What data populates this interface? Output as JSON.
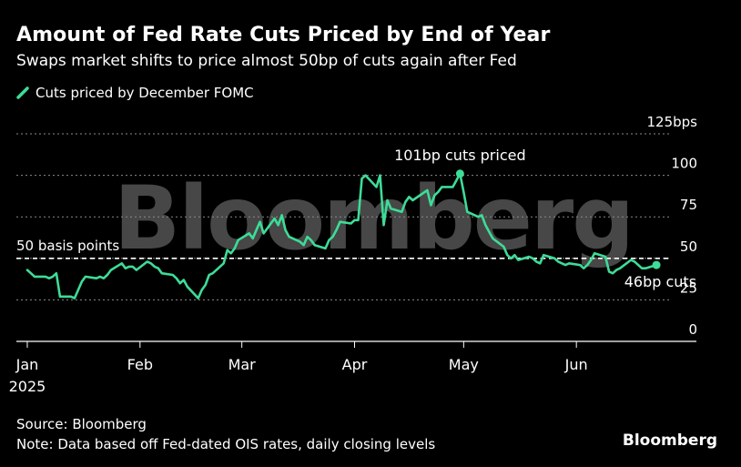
{
  "title": "Amount of Fed Rate Cuts Priced by End of Year",
  "subtitle": "Swaps market shifts to price almost 50bp of cuts again after Fed",
  "legend": {
    "label": "Cuts priced by December FOMC"
  },
  "footer": {
    "source": "Source: Bloomberg",
    "note": "Note: Data based off Fed-dated OIS rates, daily closing levels"
  },
  "logo": "Bloomberg",
  "watermark": "Bloomberg",
  "colors": {
    "series": "#3ddc97",
    "grid": "#8a8a8a",
    "reference": "#ffffff",
    "background": "#000000"
  },
  "chart_data": {
    "type": "line",
    "ylim": [
      0,
      125
    ],
    "y_ticks": [
      {
        "value": 0,
        "label": "0"
      },
      {
        "value": 25,
        "label": "25"
      },
      {
        "value": 50,
        "label": "50"
      },
      {
        "value": 75,
        "label": "75"
      },
      {
        "value": 100,
        "label": "100"
      },
      {
        "value": 125,
        "label": "125bps"
      }
    ],
    "x_ticks": [
      {
        "date": "2025-01-01",
        "label": "Jan",
        "sublabel": "2025"
      },
      {
        "date": "2025-02-01",
        "label": "Feb",
        "sublabel": ""
      },
      {
        "date": "2025-03-01",
        "label": "Mar",
        "sublabel": ""
      },
      {
        "date": "2025-04-01",
        "label": "Apr",
        "sublabel": ""
      },
      {
        "date": "2025-05-01",
        "label": "May",
        "sublabel": ""
      },
      {
        "date": "2025-06-01",
        "label": "Jun",
        "sublabel": ""
      }
    ],
    "xlim": [
      "2024-12-29",
      "2025-07-04"
    ],
    "grid": true,
    "reference_line": {
      "value": 50,
      "label": "50 basis points"
    },
    "series": [
      {
        "name": "Cuts priced by December FOMC",
        "points": [
          [
            "2025-01-01",
            43
          ],
          [
            "2025-01-02",
            41
          ],
          [
            "2025-01-03",
            39
          ],
          [
            "2025-01-06",
            39
          ],
          [
            "2025-01-07",
            38
          ],
          [
            "2025-01-08",
            39
          ],
          [
            "2025-01-09",
            41
          ],
          [
            "2025-01-10",
            27
          ],
          [
            "2025-01-13",
            27
          ],
          [
            "2025-01-14",
            26
          ],
          [
            "2025-01-15",
            31
          ],
          [
            "2025-01-16",
            36
          ],
          [
            "2025-01-17",
            39
          ],
          [
            "2025-01-20",
            38
          ],
          [
            "2025-01-21",
            39
          ],
          [
            "2025-01-22",
            38
          ],
          [
            "2025-01-23",
            40
          ],
          [
            "2025-01-24",
            43
          ],
          [
            "2025-01-27",
            47
          ],
          [
            "2025-01-28",
            44
          ],
          [
            "2025-01-29",
            45
          ],
          [
            "2025-01-30",
            45
          ],
          [
            "2025-01-31",
            43
          ],
          [
            "2025-02-03",
            48
          ],
          [
            "2025-02-04",
            47
          ],
          [
            "2025-02-05",
            45
          ],
          [
            "2025-02-06",
            44
          ],
          [
            "2025-02-07",
            41
          ],
          [
            "2025-02-10",
            40
          ],
          [
            "2025-02-11",
            38
          ],
          [
            "2025-02-12",
            35
          ],
          [
            "2025-02-13",
            37
          ],
          [
            "2025-02-14",
            33
          ],
          [
            "2025-02-17",
            26
          ],
          [
            "2025-02-18",
            31
          ],
          [
            "2025-02-19",
            34
          ],
          [
            "2025-02-20",
            40
          ],
          [
            "2025-02-21",
            41
          ],
          [
            "2025-02-24",
            47
          ],
          [
            "2025-02-25",
            55
          ],
          [
            "2025-02-26",
            53
          ],
          [
            "2025-02-27",
            56
          ],
          [
            "2025-02-28",
            61
          ],
          [
            "2025-03-03",
            65
          ],
          [
            "2025-03-04",
            62
          ],
          [
            "2025-03-05",
            67
          ],
          [
            "2025-03-06",
            72
          ],
          [
            "2025-03-07",
            65
          ],
          [
            "2025-03-10",
            74
          ],
          [
            "2025-03-11",
            70
          ],
          [
            "2025-03-12",
            76
          ],
          [
            "2025-03-13",
            67
          ],
          [
            "2025-03-14",
            63
          ],
          [
            "2025-03-17",
            60
          ],
          [
            "2025-03-18",
            58
          ],
          [
            "2025-03-19",
            63
          ],
          [
            "2025-03-20",
            61
          ],
          [
            "2025-03-21",
            58
          ],
          [
            "2025-03-24",
            56
          ],
          [
            "2025-03-25",
            61
          ],
          [
            "2025-03-26",
            63
          ],
          [
            "2025-03-27",
            67
          ],
          [
            "2025-03-28",
            72
          ],
          [
            "2025-03-31",
            71
          ],
          [
            "2025-04-01",
            73
          ],
          [
            "2025-04-02",
            73
          ],
          [
            "2025-04-03",
            98
          ],
          [
            "2025-04-04",
            100
          ],
          [
            "2025-04-07",
            93
          ],
          [
            "2025-04-08",
            100
          ],
          [
            "2025-04-09",
            70
          ],
          [
            "2025-04-10",
            85
          ],
          [
            "2025-04-11",
            80
          ],
          [
            "2025-04-14",
            78
          ],
          [
            "2025-04-15",
            84
          ],
          [
            "2025-04-16",
            87
          ],
          [
            "2025-04-17",
            85
          ],
          [
            "2025-04-21",
            91
          ],
          [
            "2025-04-22",
            82
          ],
          [
            "2025-04-23",
            88
          ],
          [
            "2025-04-24",
            90
          ],
          [
            "2025-04-25",
            93
          ],
          [
            "2025-04-28",
            93
          ],
          [
            "2025-04-29",
            97
          ],
          [
            "2025-04-30",
            101
          ],
          [
            "2025-05-01",
            90
          ],
          [
            "2025-05-02",
            78
          ],
          [
            "2025-05-05",
            75
          ],
          [
            "2025-05-06",
            76
          ],
          [
            "2025-05-07",
            70
          ],
          [
            "2025-05-08",
            66
          ],
          [
            "2025-05-09",
            62
          ],
          [
            "2025-05-12",
            57
          ],
          [
            "2025-05-13",
            52
          ],
          [
            "2025-05-14",
            50
          ],
          [
            "2025-05-15",
            52
          ],
          [
            "2025-05-16",
            49
          ],
          [
            "2025-05-19",
            51
          ],
          [
            "2025-05-20",
            50
          ],
          [
            "2025-05-21",
            48
          ],
          [
            "2025-05-22",
            47
          ],
          [
            "2025-05-23",
            52
          ],
          [
            "2025-05-26",
            50
          ],
          [
            "2025-05-27",
            48
          ],
          [
            "2025-05-28",
            47
          ],
          [
            "2025-05-29",
            46
          ],
          [
            "2025-05-30",
            47
          ],
          [
            "2025-06-02",
            46
          ],
          [
            "2025-06-03",
            44
          ],
          [
            "2025-06-04",
            46
          ],
          [
            "2025-06-05",
            49
          ],
          [
            "2025-06-06",
            53
          ],
          [
            "2025-06-09",
            51
          ],
          [
            "2025-06-10",
            42
          ],
          [
            "2025-06-11",
            41
          ],
          [
            "2025-06-12",
            43
          ],
          [
            "2025-06-13",
            44
          ],
          [
            "2025-06-16",
            49
          ],
          [
            "2025-06-17",
            48
          ],
          [
            "2025-06-18",
            46
          ],
          [
            "2025-06-19",
            44
          ],
          [
            "2025-06-20",
            44
          ],
          [
            "2025-06-23",
            46
          ]
        ]
      }
    ],
    "annotations": [
      {
        "date": "2025-04-30",
        "value": 101,
        "label": "101bp cuts priced",
        "position": "above"
      },
      {
        "date": "2025-06-23",
        "value": 46,
        "label": "46bp cuts",
        "position": "below-left"
      }
    ]
  }
}
